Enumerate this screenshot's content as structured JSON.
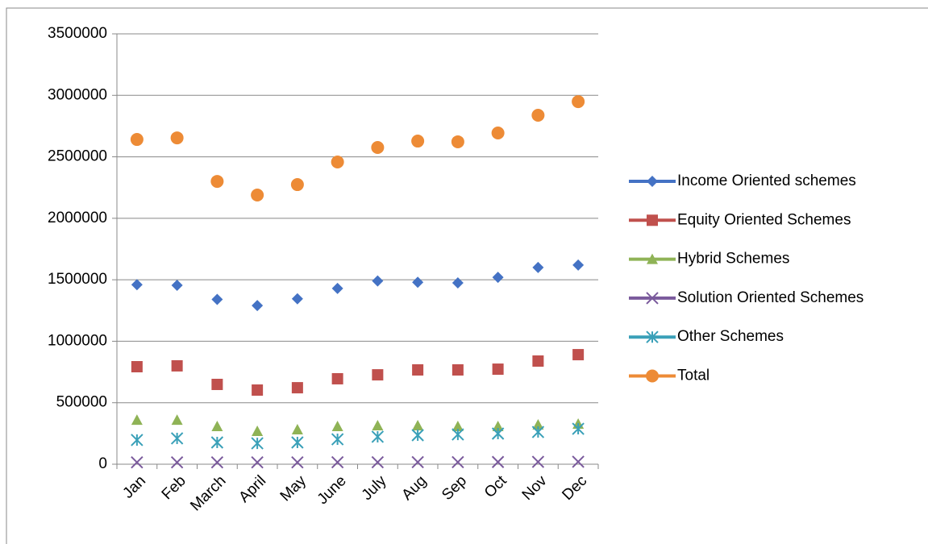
{
  "chart_data": {
    "type": "line",
    "categories": [
      "Jan",
      "Feb",
      "March",
      "April",
      "May",
      "June",
      "July",
      "Aug",
      "Sep",
      "Oct",
      "Nov",
      "Dec"
    ],
    "series": [
      {
        "name": "Income Oriented schemes",
        "color": "#4472c4",
        "marker": "diamond",
        "values": [
          1460000,
          1455000,
          1340000,
          1290000,
          1345000,
          1430000,
          1490000,
          1480000,
          1475000,
          1520000,
          1600000,
          1620000
        ]
      },
      {
        "name": "Equity Oriented Schemes",
        "color": "#c0504d",
        "marker": "square",
        "values": [
          793000,
          800000,
          649000,
          603000,
          622000,
          695000,
          727000,
          767000,
          767000,
          773000,
          839000,
          891000
        ]
      },
      {
        "name": "Hybrid Schemes",
        "color": "#8fb356",
        "marker": "triangle",
        "values": [
          360000,
          360000,
          308000,
          269000,
          282000,
          308000,
          315000,
          315000,
          308000,
          308000,
          321000,
          328000
        ]
      },
      {
        "name": "Solution Oriented Schemes",
        "color": "#7a5a9c",
        "marker": "x",
        "values": [
          15000,
          15000,
          15000,
          15000,
          15000,
          16000,
          16000,
          17000,
          17000,
          18000,
          19000,
          20000
        ]
      },
      {
        "name": "Other Schemes",
        "color": "#3aa0b8",
        "marker": "asterisk",
        "values": [
          197000,
          210000,
          177000,
          170000,
          177000,
          203000,
          223000,
          236000,
          242000,
          249000,
          262000,
          288000
        ]
      },
      {
        "name": "Total",
        "color": "#ed8b36",
        "marker": "circle",
        "values": [
          2641000,
          2654000,
          2300000,
          2189000,
          2274000,
          2458000,
          2576000,
          2628000,
          2622000,
          2694000,
          2838000,
          2949000
        ]
      }
    ],
    "ylim": [
      0,
      3500000
    ],
    "yticks": [
      0,
      500000,
      1000000,
      1500000,
      2000000,
      2500000,
      3000000,
      3500000
    ],
    "grid": true,
    "legend": "right"
  }
}
